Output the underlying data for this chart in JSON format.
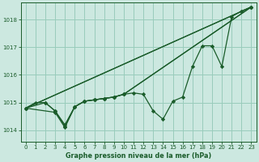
{
  "title": "Graphe pression niveau de la mer (hPa)",
  "bg_color": "#cce8e0",
  "grid_color": "#99ccbb",
  "line_color": "#1a5c2a",
  "xlim": [
    -0.5,
    23.5
  ],
  "ylim": [
    1013.6,
    1018.6
  ],
  "yticks": [
    1014,
    1015,
    1016,
    1017,
    1018
  ],
  "xticks": [
    0,
    1,
    2,
    3,
    4,
    5,
    6,
    7,
    8,
    9,
    10,
    11,
    12,
    13,
    14,
    15,
    16,
    17,
    18,
    19,
    20,
    21,
    22,
    23
  ],
  "series": [
    {
      "x": [
        0,
        1,
        2,
        3,
        4,
        5,
        6,
        7,
        8,
        9,
        10,
        11,
        12,
        13,
        14,
        15,
        16,
        17,
        18,
        19,
        20,
        21,
        22,
        23
      ],
      "y": [
        1014.8,
        1015.0,
        1015.0,
        1014.7,
        1014.2,
        1014.85,
        1015.05,
        1015.1,
        1015.15,
        1015.2,
        1015.3,
        1015.35,
        1015.3,
        1014.7,
        1014.4,
        1015.05,
        1015.2,
        1016.3,
        1017.05,
        1017.05,
        1016.3,
        1018.1,
        1018.3,
        1018.45
      ],
      "marker": true
    },
    {
      "x": [
        0,
        23
      ],
      "y": [
        1014.8,
        1018.45
      ],
      "marker": false
    },
    {
      "x": [
        0,
        23
      ],
      "y": [
        1014.8,
        1018.45
      ],
      "marker": false
    },
    {
      "x": [
        0,
        3,
        4,
        5,
        6,
        7,
        8,
        9,
        10,
        23
      ],
      "y": [
        1014.8,
        1014.65,
        1014.1,
        1014.85,
        1015.05,
        1015.1,
        1015.15,
        1015.2,
        1015.3,
        1018.45
      ],
      "marker": true
    },
    {
      "x": [
        0,
        2,
        3,
        4,
        5,
        6,
        7,
        8,
        9,
        10,
        23
      ],
      "y": [
        1014.8,
        1015.0,
        1014.7,
        1014.15,
        1014.85,
        1015.05,
        1015.1,
        1015.15,
        1015.2,
        1015.3,
        1018.45
      ],
      "marker": true
    }
  ]
}
